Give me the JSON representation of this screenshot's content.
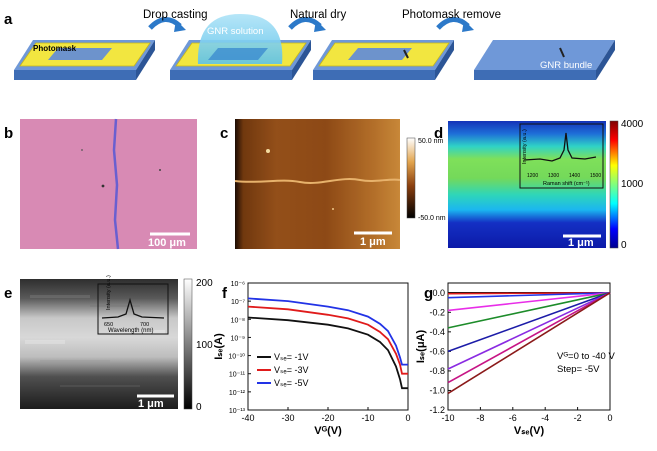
{
  "panels": {
    "a": {
      "label": "a",
      "steps": [
        "Drop casting",
        "Natural dry",
        "Photomask remove"
      ],
      "photomask_label": "Photomask",
      "solution_label": "GNR solution",
      "bundle_label": "GNR bundle"
    },
    "b": {
      "label": "b",
      "scale_bar": "100 μm"
    },
    "c": {
      "label": "c",
      "scale_bar": "1 μm",
      "colorbar_top": "50.0 nm",
      "colorbar_bottom": "-50.0 nm"
    },
    "d": {
      "label": "d",
      "scale_bar": "1 μm",
      "colorbar_ticks": [
        "4000",
        "1000",
        "0"
      ],
      "inset": {
        "ylabel": "Intensity (a.u.)",
        "xlabel": "Raman shift (cm⁻¹)",
        "xticks": [
          "1200",
          "1300",
          "1400",
          "1500"
        ]
      }
    },
    "e": {
      "label": "e",
      "scale_bar": "1 μm",
      "colorbar_ticks": [
        "200",
        "100",
        "0"
      ],
      "inset": {
        "ylabel": "Intensity (a.u.)",
        "xlabel": "Wavelength (nm)",
        "xticks": [
          "650",
          "700"
        ]
      }
    },
    "f": {
      "label": "f"
    },
    "g": {
      "label": "g",
      "annotation_line1": "Vᴳ=0 to -40 V",
      "annotation_line2": "Step= -5V"
    }
  },
  "chart_data": [
    {
      "panel": "f",
      "type": "line",
      "xlabel": "Vᴳ(V)",
      "ylabel": "Iₛₑ(A)",
      "xlim": [
        -40,
        0
      ],
      "ylim_log10": [
        -13,
        -6
      ],
      "yscale": "log",
      "xticks": [
        "-40",
        "-30",
        "-20",
        "-10",
        "0"
      ],
      "yticks": [
        "10⁻¹³",
        "10⁻¹²",
        "10⁻¹¹",
        "10⁻¹⁰",
        "10⁻⁹",
        "10⁻⁸",
        "10⁻⁷",
        "10⁻⁶"
      ],
      "legend_position": "bottom-left",
      "series": [
        {
          "name": "Vₛₑ= -1V",
          "color": "#111111",
          "x": [
            -40,
            -30,
            -20,
            -15,
            -10,
            -7,
            -5,
            -3,
            -2,
            -1.5,
            -1,
            0
          ],
          "y_log10": [
            -7.9,
            -8.05,
            -8.3,
            -8.5,
            -8.85,
            -9.25,
            -9.7,
            -10.6,
            -11.3,
            -11.8,
            -11.8,
            -11.8
          ]
        },
        {
          "name": "Vₛₑ= -3V",
          "color": "#e01b1b",
          "x": [
            -40,
            -30,
            -20,
            -15,
            -10,
            -7,
            -5,
            -3,
            -2,
            -1.5,
            -1,
            0
          ],
          "y_log10": [
            -7.3,
            -7.45,
            -7.75,
            -7.95,
            -8.3,
            -8.7,
            -9.1,
            -9.9,
            -10.5,
            -11.0,
            -11.0,
            -11.0
          ]
        },
        {
          "name": "Vₛₑ= -5V",
          "color": "#2233e6",
          "x": [
            -40,
            -30,
            -20,
            -15,
            -10,
            -7,
            -5,
            -3,
            -2,
            -1.5,
            -1,
            0
          ],
          "y_log10": [
            -6.85,
            -7.0,
            -7.3,
            -7.5,
            -7.85,
            -8.25,
            -8.65,
            -9.45,
            -10.1,
            -10.5,
            -10.5,
            -10.5
          ]
        }
      ]
    },
    {
      "panel": "g",
      "type": "line",
      "xlabel": "Vₛₑ(V)",
      "ylabel": "Iₛₑ(μA)",
      "xlim": [
        -10,
        0
      ],
      "ylim": [
        -1.2,
        0.1
      ],
      "xticks": [
        "-10",
        "-8",
        "-6",
        "-4",
        "-2",
        "0"
      ],
      "yticks": [
        "0.0",
        "-0.2",
        "-0.4",
        "-0.6",
        "-0.8",
        "-1.0",
        "-1.2"
      ],
      "series": [
        {
          "color": "#111111",
          "x": [
            -10,
            0
          ],
          "y": [
            0.0,
            0.0
          ]
        },
        {
          "color": "#e01b1b",
          "x": [
            -10,
            0
          ],
          "y": [
            -0.01,
            0.0
          ]
        },
        {
          "color": "#2233e6",
          "x": [
            -10,
            0
          ],
          "y": [
            -0.05,
            0.0
          ]
        },
        {
          "color": "#e82ee8",
          "x": [
            -10,
            0
          ],
          "y": [
            -0.18,
            0.0
          ]
        },
        {
          "color": "#1d8c2a",
          "x": [
            -10,
            0
          ],
          "y": [
            -0.36,
            0.0
          ]
        },
        {
          "color": "#1c1ca8",
          "x": [
            -10,
            0
          ],
          "y": [
            -0.6,
            0.0
          ]
        },
        {
          "color": "#8a2be2",
          "x": [
            -10,
            0
          ],
          "y": [
            -0.78,
            0.0
          ]
        },
        {
          "color": "#c71585",
          "x": [
            -10,
            0
          ],
          "y": [
            -0.92,
            0.0
          ]
        },
        {
          "color": "#8b1a1a",
          "x": [
            -10,
            0
          ],
          "y": [
            -1.03,
            0.0
          ]
        }
      ]
    }
  ]
}
